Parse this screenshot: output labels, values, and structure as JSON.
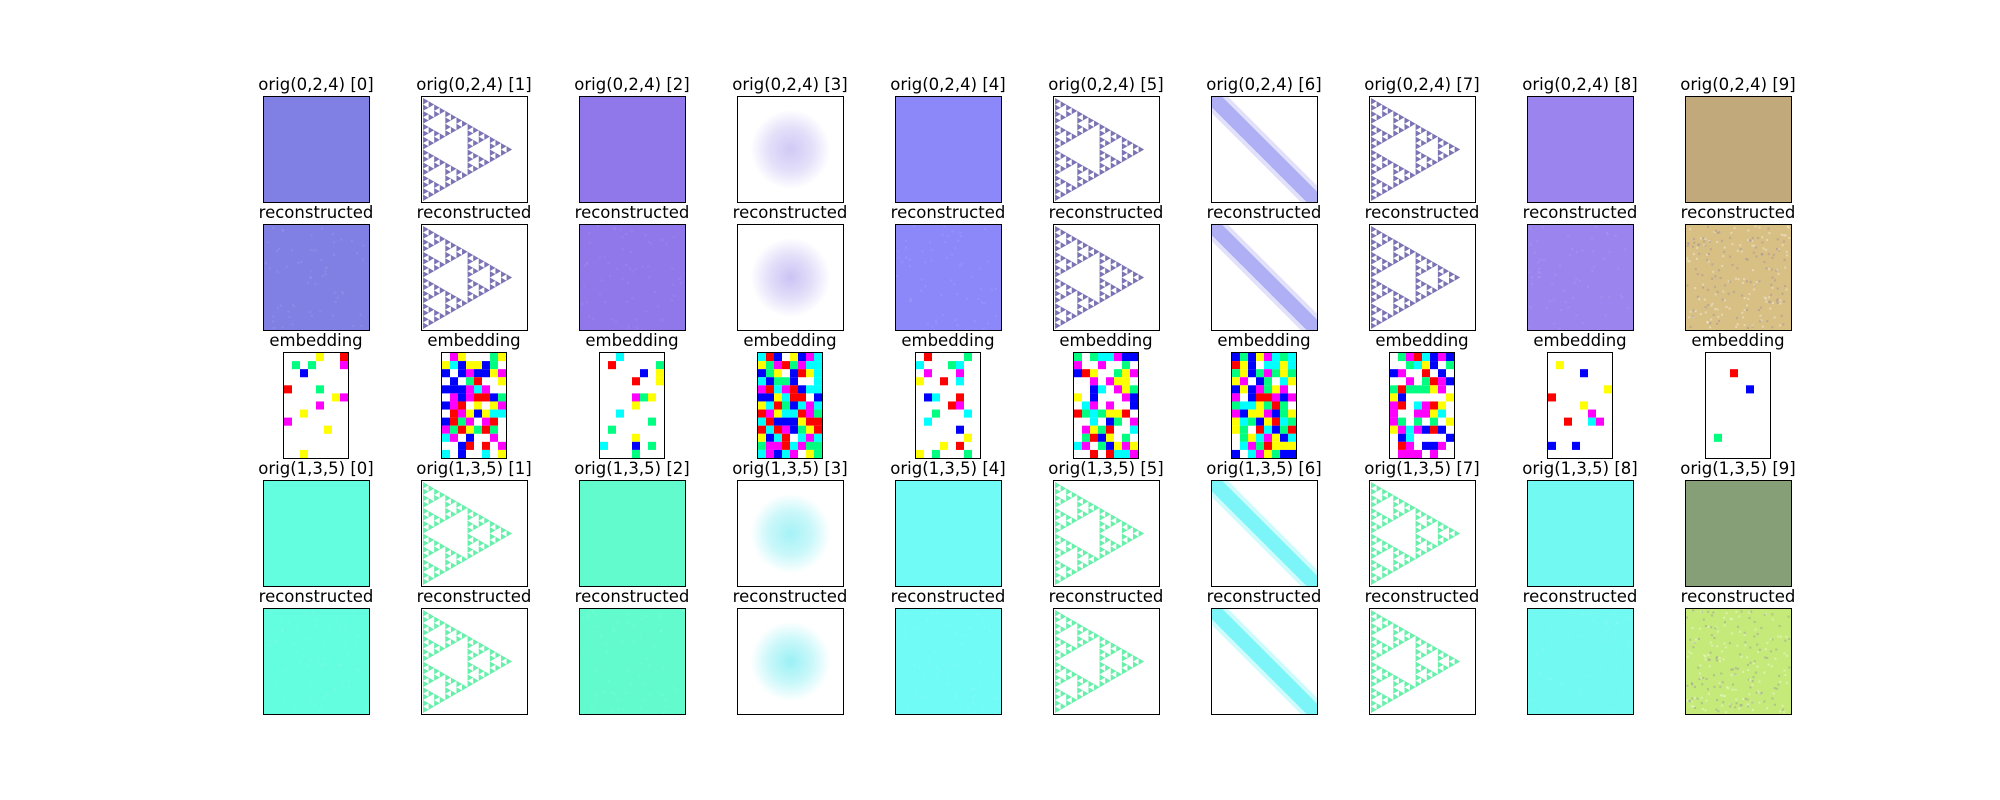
{
  "figure": {
    "titles": {
      "row0": [
        "orig(0,2,4) [0]",
        "orig(0,2,4) [1]",
        "orig(0,2,4) [2]",
        "orig(0,2,4) [3]",
        "orig(0,2,4) [4]",
        "orig(0,2,4) [5]",
        "orig(0,2,4) [6]",
        "orig(0,2,4) [7]",
        "orig(0,2,4) [8]",
        "orig(0,2,4) [9]"
      ],
      "row1": [
        "reconstructed",
        "reconstructed",
        "reconstructed",
        "reconstructed",
        "reconstructed",
        "reconstructed",
        "reconstructed",
        "reconstructed",
        "reconstructed",
        "reconstructed"
      ],
      "row2": [
        "embedding",
        "embedding",
        "embedding",
        "embedding",
        "embedding",
        "embedding",
        "embedding",
        "embedding",
        "embedding",
        "embedding"
      ],
      "row3": [
        "orig(1,3,5) [0]",
        "orig(1,3,5) [1]",
        "orig(1,3,5) [2]",
        "orig(1,3,5) [3]",
        "orig(1,3,5) [4]",
        "orig(1,3,5) [5]",
        "orig(1,3,5) [6]",
        "orig(1,3,5) [7]",
        "orig(1,3,5) [8]",
        "orig(1,3,5) [9]"
      ],
      "row4": [
        "reconstructed",
        "reconstructed",
        "reconstructed",
        "reconstructed",
        "reconstructed",
        "reconstructed",
        "reconstructed",
        "reconstructed",
        "reconstructed",
        "reconstructed"
      ]
    },
    "image_kinds": [
      "solid",
      "sierpinski",
      "solid",
      "blob",
      "solid",
      "sierpinski",
      "diagonal",
      "sierpinski",
      "solid",
      "texture"
    ],
    "colors": {
      "row0": [
        "#8080e4",
        "#7b74b4",
        "#9077ea",
        "#c8c0f4",
        "#8c88fa",
        "#7b74b4",
        "#aaaaf5",
        "#7b74b4",
        "#9c84ee",
        "#c2a97c"
      ],
      "row3": [
        "#63fde0",
        "#66f0aa",
        "#62fbce",
        "#95f0f5",
        "#70fbf7",
        "#66f0aa",
        "#74f5f8",
        "#66f0aa",
        "#72f9f1",
        "#879f77"
      ],
      "row4_texture": "#c6ea7a",
      "row1_texture": "#d8c084"
    },
    "embedding_palette": [
      "#ff00ff",
      "#00ffff",
      "#ffff00",
      "#0000ff",
      "#ff0000",
      "#00ff80"
    ],
    "embedding_fill": [
      0.12,
      0.65,
      0.15,
      0.9,
      0.25,
      0.65,
      0.92,
      0.65,
      0.12,
      0.08
    ]
  }
}
